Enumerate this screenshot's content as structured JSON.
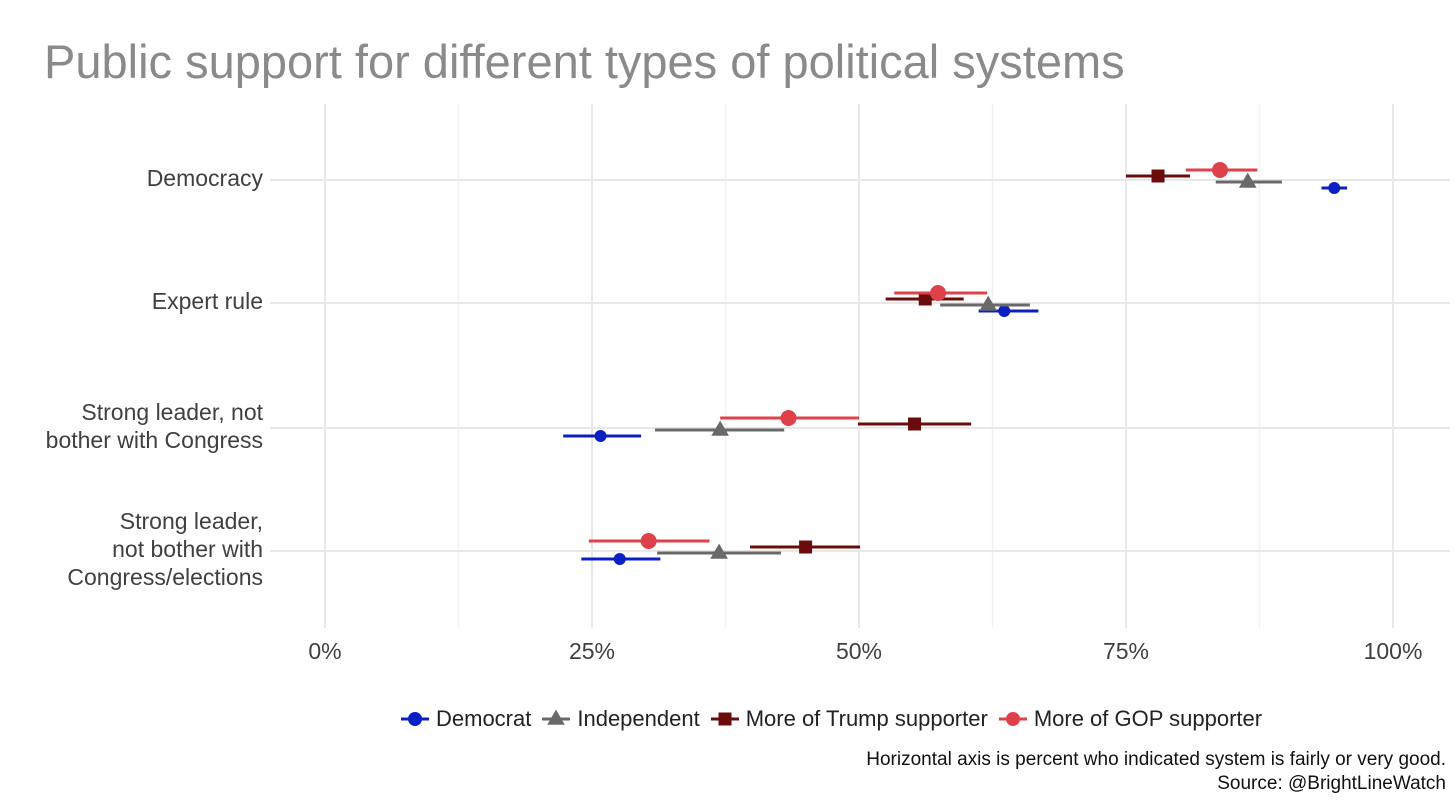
{
  "chart_data": {
    "type": "scatter",
    "title": "Public support for different types of political systems",
    "xlim": [
      0,
      100
    ],
    "x_ticks": [
      "0%",
      "25%",
      "50%",
      "75%",
      "100%"
    ],
    "categories": [
      [
        "Democracy"
      ],
      [
        "Expert rule"
      ],
      [
        "Strong leader, not",
        "bother with Congress"
      ],
      [
        "Strong leader,",
        "not bother with",
        "Congress/elections"
      ]
    ],
    "error_bars": true,
    "grid": true,
    "legend_position": "bottom",
    "series": [
      {
        "name": "Democrat",
        "color": "#0a1fc4",
        "marker": "circle",
        "points": [
          {
            "x": 94.5,
            "lo": 93.3,
            "hi": 95.7
          },
          {
            "x": 63.6,
            "lo": 61.2,
            "hi": 66.8
          },
          {
            "x": 25.8,
            "lo": 22.3,
            "hi": 29.6
          },
          {
            "x": 27.6,
            "lo": 24.0,
            "hi": 31.4
          }
        ]
      },
      {
        "name": "Independent",
        "color": "#696969",
        "marker": "triangle",
        "points": [
          {
            "x": 86.4,
            "lo": 83.4,
            "hi": 89.6
          },
          {
            "x": 62.1,
            "lo": 57.6,
            "hi": 66.0
          },
          {
            "x": 37.0,
            "lo": 30.9,
            "hi": 43.0
          },
          {
            "x": 36.9,
            "lo": 31.1,
            "hi": 42.7
          }
        ]
      },
      {
        "name": "More of Trump supporter",
        "color": "#6b0c0c",
        "marker": "square",
        "points": [
          {
            "x": 78.0,
            "lo": 75.0,
            "hi": 81.0
          },
          {
            "x": 56.2,
            "lo": 52.5,
            "hi": 59.8
          },
          {
            "x": 55.2,
            "lo": 49.9,
            "hi": 60.5
          },
          {
            "x": 45.0,
            "lo": 39.8,
            "hi": 50.1
          }
        ]
      },
      {
        "name": "More of GOP supporter",
        "color": "#de4149",
        "marker": "circle",
        "points": [
          {
            "x": 83.8,
            "lo": 80.6,
            "hi": 87.3
          },
          {
            "x": 57.4,
            "lo": 53.3,
            "hi": 62.0
          },
          {
            "x": 43.4,
            "lo": 37.0,
            "hi": 50.0
          },
          {
            "x": 30.3,
            "lo": 24.7,
            "hi": 36.0
          }
        ]
      }
    ]
  },
  "caption": {
    "line1": "Horizontal axis is percent who indicated system is fairly or very good.",
    "line2": "Source: @BrightLineWatch"
  }
}
